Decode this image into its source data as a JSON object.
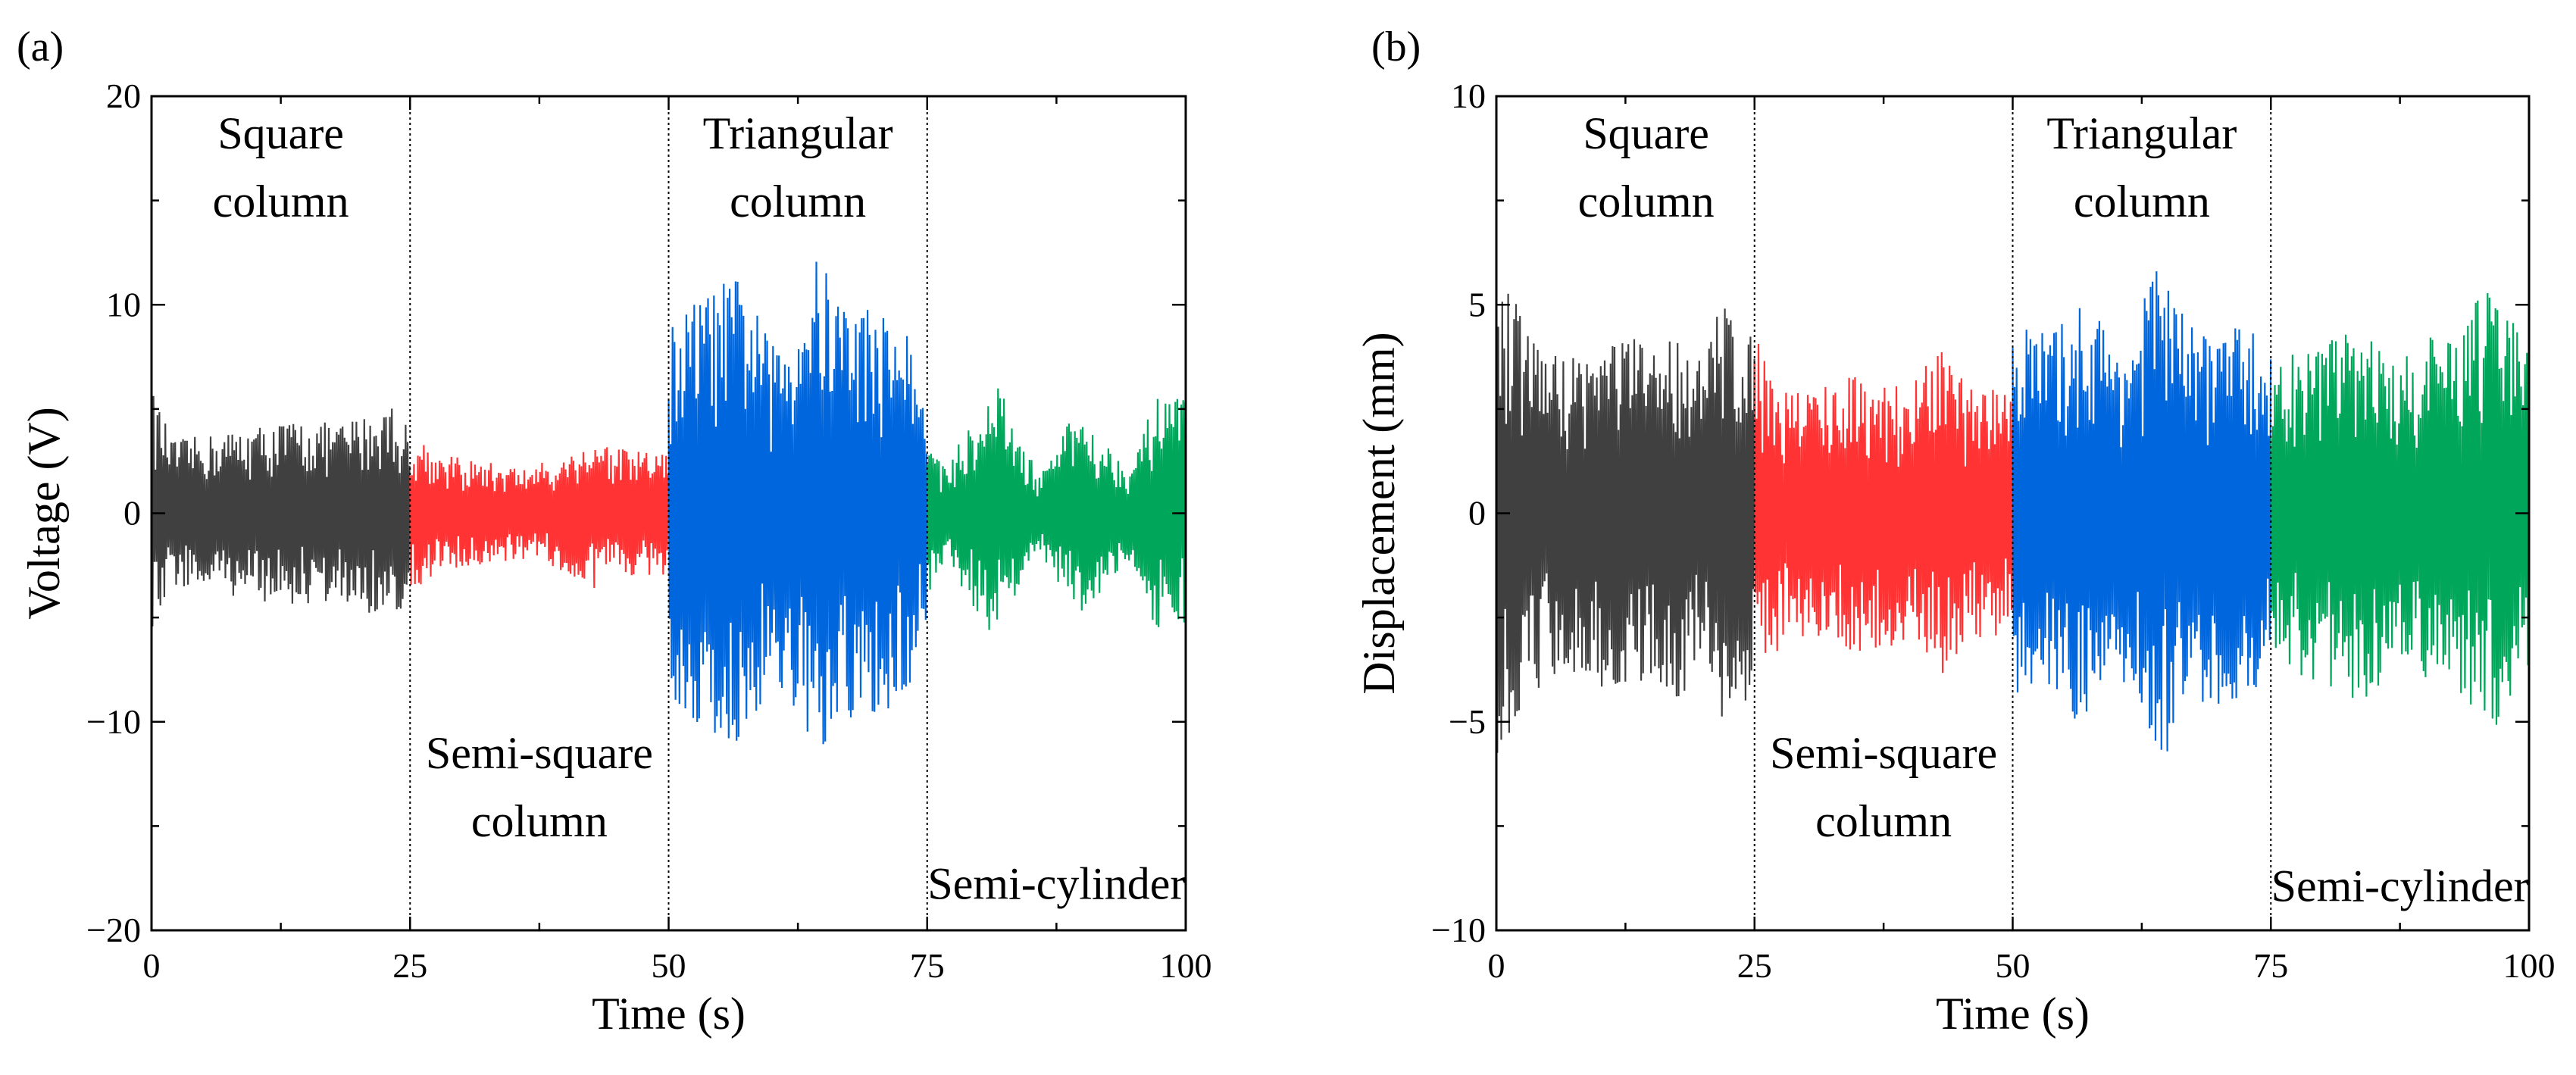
{
  "figure": {
    "panels": [
      {
        "tag": "(a)"
      },
      {
        "tag": "(b)"
      }
    ]
  },
  "chart_data": [
    {
      "type": "line",
      "panel_label": "(a)",
      "xlabel": "Time (s)",
      "ylabel": "Voltage (V)",
      "xlim": [
        0,
        100
      ],
      "ylim": [
        -20,
        20
      ],
      "x_ticks": [
        0,
        25,
        50,
        75,
        100
      ],
      "x_tick_labels": [
        "0",
        "25",
        "50",
        "75",
        "100"
      ],
      "y_ticks": [
        -20,
        -10,
        0,
        10,
        20
      ],
      "y_tick_labels": [
        "−20",
        "−10",
        "0",
        "10",
        "20"
      ],
      "grid": false,
      "dividers_x": [
        25,
        50,
        75
      ],
      "annotations": [
        {
          "lines": [
            "Square",
            "column"
          ],
          "x": 12.5,
          "y": 17.5,
          "ypos": "top"
        },
        {
          "lines": [
            "Semi-square",
            "column"
          ],
          "x": 37.5,
          "y": -15.5,
          "ypos": "bottom"
        },
        {
          "lines": [
            "Triangular",
            "column"
          ],
          "x": 62.5,
          "y": 17.5,
          "ypos": "top"
        },
        {
          "lines": [
            "Semi-cylinder"
          ],
          "x": 87.5,
          "y": -18.5,
          "ypos": "bottom"
        }
      ],
      "series": [
        {
          "segment": "Square column",
          "x_range": [
            0,
            25
          ],
          "color": "#404040",
          "envelope": [
            [
              0,
              6.0
            ],
            [
              2,
              3.5
            ],
            [
              6,
              3.8
            ],
            [
              10,
              4.2
            ],
            [
              14,
              4.5
            ],
            [
              18,
              4.3
            ],
            [
              22,
              5.0
            ],
            [
              23,
              5.5
            ],
            [
              25,
              4.0
            ]
          ]
        },
        {
          "segment": "Semi-square column",
          "x_range": [
            25,
            50
          ],
          "color": "#ff3333",
          "envelope": [
            [
              25,
              4.2
            ],
            [
              28,
              2.8
            ],
            [
              32,
              2.5
            ],
            [
              36,
              2.2
            ],
            [
              40,
              2.8
            ],
            [
              43,
              3.7
            ],
            [
              46,
              3.0
            ],
            [
              50,
              3.0
            ]
          ]
        },
        {
          "segment": "Triangular column",
          "x_range": [
            50,
            75
          ],
          "color": "#0066dd",
          "envelope": [
            [
              50,
              9.0
            ],
            [
              53,
              10.5
            ],
            [
              57,
              11.5
            ],
            [
              60,
              8.0
            ],
            [
              62,
              9.5
            ],
            [
              64,
              12.5
            ],
            [
              67,
              10.5
            ],
            [
              70,
              10.0
            ],
            [
              73,
              9.0
            ],
            [
              75,
              5.0
            ]
          ]
        },
        {
          "segment": "Semi-cylinder",
          "x_range": [
            75,
            100
          ],
          "color": "#00a65a",
          "envelope": [
            [
              75,
              4.0
            ],
            [
              77,
              2.0
            ],
            [
              79,
              4.5
            ],
            [
              82,
              6.2
            ],
            [
              84,
              3.5
            ],
            [
              86,
              1.8
            ],
            [
              88,
              4.0
            ],
            [
              90,
              5.0
            ],
            [
              93,
              3.0
            ],
            [
              95,
              2.5
            ],
            [
              97,
              5.5
            ],
            [
              100,
              5.5
            ]
          ]
        }
      ]
    },
    {
      "type": "line",
      "panel_label": "(b)",
      "xlabel": "Time (s)",
      "ylabel": "Displacement (mm)",
      "xlim": [
        0,
        100
      ],
      "ylim": [
        -10,
        10
      ],
      "x_ticks": [
        0,
        25,
        50,
        75,
        100
      ],
      "x_tick_labels": [
        "0",
        "25",
        "50",
        "75",
        "100"
      ],
      "y_ticks": [
        -10,
        -5,
        0,
        5,
        10
      ],
      "y_tick_labels": [
        "−10",
        "−5",
        "0",
        "5",
        "10"
      ],
      "grid": false,
      "dividers_x": [
        25,
        50,
        75
      ],
      "annotations": [
        {
          "lines": [
            "Square",
            "column"
          ],
          "x": 14.5,
          "y": 8.75,
          "ypos": "top"
        },
        {
          "lines": [
            "Semi-square",
            "column"
          ],
          "x": 37.5,
          "y": -7.75,
          "ypos": "bottom"
        },
        {
          "lines": [
            "Triangular",
            "column"
          ],
          "x": 62.5,
          "y": 8.75,
          "ypos": "top"
        },
        {
          "lines": [
            "Semi-cylinder"
          ],
          "x": 87.5,
          "y": -9.3,
          "ypos": "bottom"
        }
      ],
      "series": [
        {
          "segment": "Square column",
          "x_range": [
            0,
            25
          ],
          "color": "#404040",
          "envelope": [
            [
              0,
              6.0
            ],
            [
              1,
              5.5
            ],
            [
              3,
              4.5
            ],
            [
              6,
              3.8
            ],
            [
              9,
              4.0
            ],
            [
              12,
              4.4
            ],
            [
              15,
              4.0
            ],
            [
              18,
              4.5
            ],
            [
              20,
              3.6
            ],
            [
              22,
              5.4
            ],
            [
              24,
              4.6
            ],
            [
              25,
              4.0
            ]
          ]
        },
        {
          "segment": "Semi-square column",
          "x_range": [
            25,
            50
          ],
          "color": "#ff3333",
          "envelope": [
            [
              25,
              4.3
            ],
            [
              28,
              3.0
            ],
            [
              32,
              3.2
            ],
            [
              36,
              3.4
            ],
            [
              40,
              3.0
            ],
            [
              43,
              4.0
            ],
            [
              46,
              3.0
            ],
            [
              50,
              3.0
            ]
          ]
        },
        {
          "segment": "Triangular column",
          "x_range": [
            50,
            75
          ],
          "color": "#0066dd",
          "envelope": [
            [
              50,
              4.6
            ],
            [
              54,
              4.4
            ],
            [
              57,
              5.2
            ],
            [
              60,
              4.2
            ],
            [
              62,
              4.5
            ],
            [
              64,
              6.3
            ],
            [
              67,
              4.5
            ],
            [
              70,
              4.6
            ],
            [
              73,
              4.4
            ],
            [
              75,
              4.0
            ]
          ]
        },
        {
          "segment": "Semi-cylinder",
          "x_range": [
            75,
            100
          ],
          "color": "#00a65a",
          "envelope": [
            [
              75,
              3.5
            ],
            [
              78,
              4.0
            ],
            [
              81,
              4.2
            ],
            [
              84,
              4.8
            ],
            [
              87,
              3.5
            ],
            [
              90,
              4.2
            ],
            [
              93,
              4.5
            ],
            [
              96,
              5.4
            ],
            [
              98,
              5.0
            ],
            [
              100,
              4.0
            ]
          ]
        }
      ]
    }
  ]
}
